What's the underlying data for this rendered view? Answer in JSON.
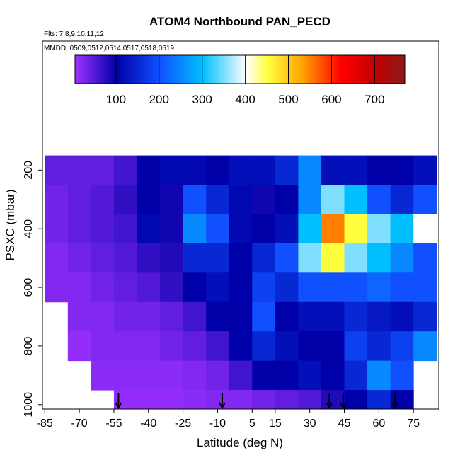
{
  "chart_data": {
    "type": "heatmap",
    "title": "ATOM4 Northbound PAN_PECD",
    "subtitle": "Flts: 7,8,9,10,11,12",
    "annotation": "MMDD: 0509,0512,0514,0517,0518,0519",
    "xlabel": "Latitude (deg N)",
    "ylabel": "PSXC (mbar)",
    "xlim": [
      -86,
      86
    ],
    "ylim": [
      1015,
      -240
    ],
    "xticks": [
      -85,
      -70,
      -55,
      -40,
      -25,
      -10,
      5,
      15,
      30,
      45,
      60,
      75
    ],
    "yticks": [
      200,
      400,
      600,
      800,
      1000
    ],
    "x": [
      -80,
      -70,
      -60,
      -50,
      -40,
      -30,
      -20,
      -10,
      0,
      10,
      20,
      30,
      40,
      50,
      60,
      70,
      80
    ],
    "y": [
      200,
      300,
      400,
      500,
      600,
      700,
      800,
      900,
      1000
    ],
    "values": [
      [
        40,
        40,
        40,
        60,
        100,
        110,
        110,
        100,
        120,
        120,
        150,
        250,
        120,
        120,
        100,
        100,
        120
      ],
      [
        30,
        40,
        50,
        70,
        100,
        90,
        200,
        150,
        110,
        90,
        100,
        250,
        350,
        300,
        200,
        150,
        200
      ],
      [
        30,
        40,
        50,
        60,
        110,
        90,
        250,
        200,
        110,
        100,
        120,
        300,
        550,
        450,
        350,
        300,
        400
      ],
      [
        20,
        30,
        40,
        50,
        70,
        80,
        150,
        150,
        100,
        150,
        200,
        350,
        450,
        350,
        300,
        250,
        200
      ],
      [
        20,
        20,
        30,
        40,
        50,
        70,
        100,
        120,
        100,
        180,
        150,
        200,
        200,
        200,
        220,
        200,
        200
      ],
      [
        null,
        20,
        20,
        30,
        30,
        40,
        60,
        100,
        100,
        200,
        100,
        120,
        120,
        150,
        130,
        120,
        150
      ],
      [
        null,
        10,
        20,
        20,
        20,
        30,
        40,
        60,
        100,
        150,
        120,
        100,
        100,
        180,
        150,
        180,
        250
      ],
      [
        null,
        null,
        15,
        15,
        15,
        15,
        20,
        30,
        60,
        100,
        100,
        120,
        100,
        150,
        250,
        200,
        null
      ],
      [
        null,
        null,
        null,
        10,
        10,
        10,
        15,
        20,
        20,
        30,
        40,
        50,
        80,
        100,
        150,
        100,
        null
      ]
    ],
    "clim": [
      5,
      770
    ],
    "cticks": [
      100,
      200,
      300,
      400,
      500,
      600,
      700
    ],
    "colorscale": [
      [
        5,
        "#9b30ff"
      ],
      [
        100,
        "#0000a8"
      ],
      [
        200,
        "#1050ff"
      ],
      [
        300,
        "#00bfff"
      ],
      [
        400,
        "#ffffff"
      ],
      [
        450,
        "#ffff40"
      ],
      [
        530,
        "#ffa500"
      ],
      [
        620,
        "#ff0000"
      ],
      [
        700,
        "#c00000"
      ],
      [
        770,
        "#8b1a1a"
      ]
    ],
    "arrows": [
      -53,
      -8,
      38.5,
      44.5,
      67
    ]
  }
}
